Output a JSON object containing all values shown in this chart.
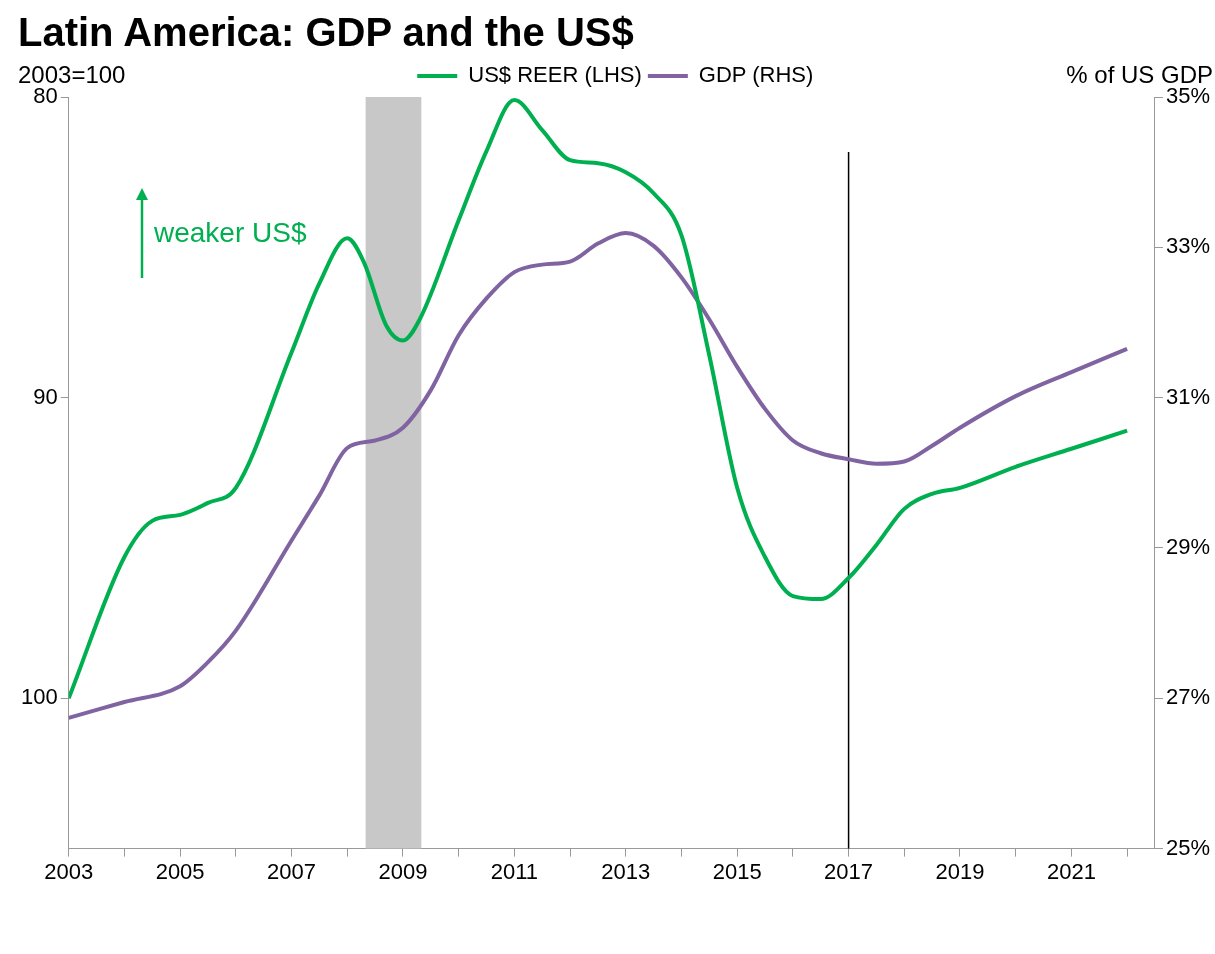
{
  "chart_data": {
    "type": "line",
    "title": "Latin America: GDP and the US$",
    "ylabel": "2003=100",
    "y2label": "% of US GDP",
    "annotations": [
      "weaker US$"
    ],
    "legend": "top",
    "grid": false,
    "marker": "none",
    "line_style": "solid",
    "xlim": [
      2003,
      2022.5
    ],
    "xticks": [
      2003,
      {
        "value": 2004,
        "label": null
      },
      2005,
      {
        "value": 2006,
        "label": null
      },
      2007,
      {
        "value": 2008,
        "label": null
      },
      2009,
      {
        "value": 2010,
        "label": null
      },
      2011,
      {
        "value": 2012,
        "label": null
      },
      2013,
      {
        "value": 2014,
        "label": null
      },
      2015,
      {
        "value": 2016,
        "label": null
      },
      2017,
      {
        "value": 2018,
        "label": null
      },
      2019,
      {
        "value": 2020,
        "label": null
      },
      2021,
      {
        "value": 2022,
        "label": null
      }
    ],
    "ylim": [
      105,
      80
    ],
    "yticks": [
      80,
      90,
      100
    ],
    "y2lim": [
      25,
      35
    ],
    "y2ticks": [
      {
        "value": 25,
        "label": "25%"
      },
      {
        "value": 27,
        "label": "27%"
      },
      {
        "value": 29,
        "label": "29%"
      },
      {
        "value": 31,
        "label": "31%"
      },
      {
        "value": 33,
        "label": "33%"
      },
      {
        "value": 35,
        "label": "35%"
      }
    ],
    "bands": [
      {
        "axis": "x",
        "from": 2008.33,
        "to": 2009.33,
        "color": "#c8c8c8"
      }
    ],
    "ref_lines": [
      {
        "axis": "x",
        "value": 2017,
        "color": "#000000"
      }
    ],
    "series": [
      {
        "name": "US$ REER (LHS)",
        "color": "#00b050",
        "x": [
          2003,
          2004,
          2004.5,
          2005,
          2005.5,
          2006,
          2007,
          2007.5,
          2008,
          2008.3,
          2008.7,
          2009,
          2009.3,
          2010,
          2010.5,
          2011,
          2011.5,
          2012,
          2012.5,
          2013,
          2013.5,
          2014,
          2014.5,
          2015,
          2015.5,
          2016,
          2016.5,
          2017,
          2017.5,
          2018,
          2018.5,
          2019,
          2020,
          2021,
          2022
        ],
        "values": [
          100,
          95.3,
          94.1,
          93.9,
          93.5,
          93.0,
          88.5,
          86.2,
          84.7,
          85.5,
          87.6,
          88.1,
          87.4,
          84.1,
          81.8,
          80.1,
          81.1,
          82.1,
          82.2,
          82.5,
          83.2,
          84.6,
          88.6,
          93.0,
          95.3,
          96.6,
          96.7,
          96.0,
          94.9,
          93.7,
          93.2,
          93.0,
          92.3,
          91.7,
          91.1
        ]
      },
      {
        "name": "GDP (RHS)",
        "color": "#8064a2",
        "axis": "y2",
        "x": [
          2003,
          2004,
          2005,
          2005.5,
          2006,
          2007,
          2007.5,
          2008,
          2008.5,
          2009,
          2009.5,
          2010,
          2010.5,
          2011,
          2011.5,
          2012,
          2012.5,
          2013,
          2013.5,
          2014,
          2014.5,
          2015,
          2015.5,
          2016,
          2016.5,
          2017,
          2017.5,
          2018,
          2018.5,
          2019,
          2020,
          2021,
          2022
        ],
        "values": [
          26.74,
          26.95,
          27.16,
          27.48,
          27.9,
          29.1,
          29.7,
          30.33,
          30.43,
          30.6,
          31.1,
          31.83,
          32.32,
          32.67,
          32.77,
          32.81,
          33.05,
          33.19,
          33.02,
          32.6,
          32.04,
          31.41,
          30.85,
          30.43,
          30.26,
          30.18,
          30.12,
          30.15,
          30.36,
          30.6,
          31.02,
          31.34,
          31.65
        ]
      }
    ]
  }
}
